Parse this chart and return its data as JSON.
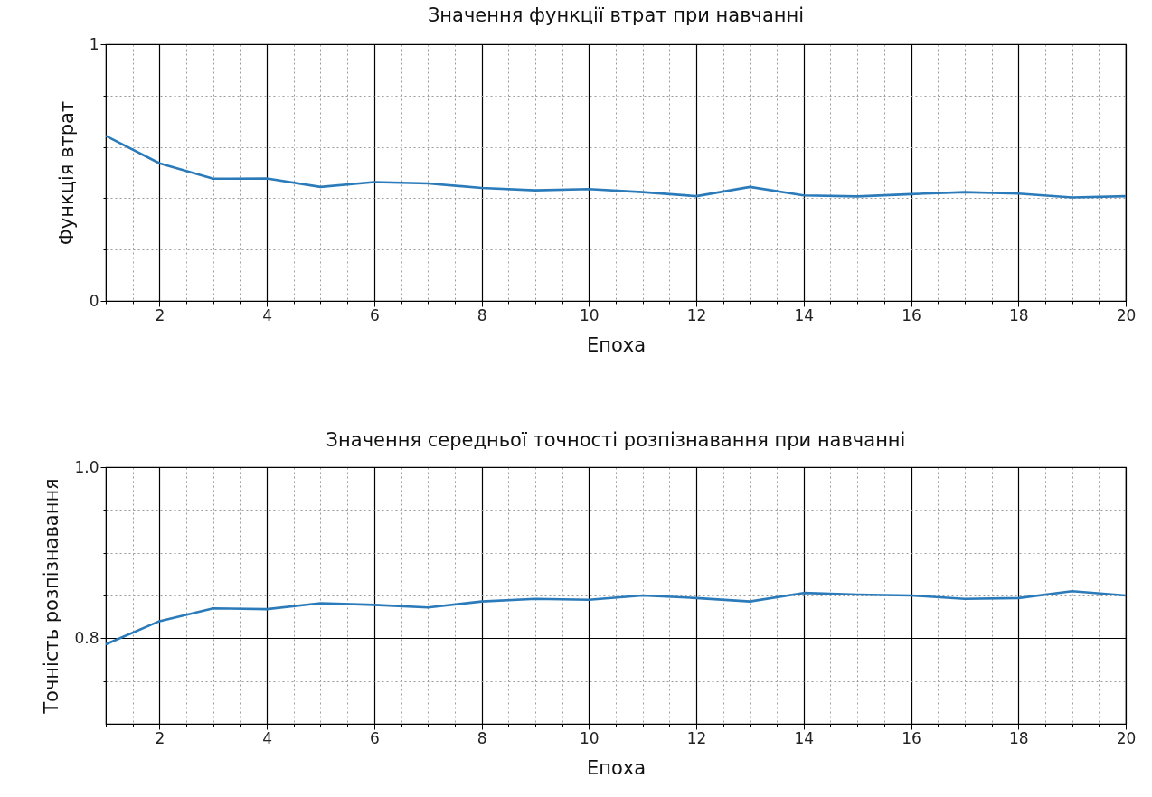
{
  "chart_data": [
    {
      "type": "line",
      "title": "Значення функції втрат при навчанні",
      "xlabel": "Епоха",
      "ylabel": "Функція втрат",
      "x": [
        1,
        2,
        3,
        4,
        5,
        6,
        7,
        8,
        9,
        10,
        11,
        12,
        13,
        14,
        15,
        16,
        17,
        18,
        19,
        20
      ],
      "series": [
        {
          "color": "#2b7bba",
          "values": [
            0.643,
            0.536,
            0.476,
            0.477,
            0.444,
            0.463,
            0.458,
            0.44,
            0.431,
            0.436,
            0.424,
            0.408,
            0.444,
            0.411,
            0.407,
            0.416,
            0.424,
            0.418,
            0.403,
            0.408
          ]
        }
      ],
      "xlim": [
        1,
        20
      ],
      "ylim": [
        0,
        1
      ],
      "xticks": [
        {
          "value": 1,
          "label": null
        },
        {
          "value": 1.5,
          "label": null
        },
        2,
        {
          "value": 2.5,
          "label": null
        },
        {
          "value": 3,
          "label": null
        },
        {
          "value": 3.5,
          "label": null
        },
        4,
        {
          "value": 4.5,
          "label": null
        },
        {
          "value": 5,
          "label": null
        },
        {
          "value": 5.5,
          "label": null
        },
        6,
        {
          "value": 6.5,
          "label": null
        },
        {
          "value": 7,
          "label": null
        },
        {
          "value": 7.5,
          "label": null
        },
        8,
        {
          "value": 8.5,
          "label": null
        },
        {
          "value": 9,
          "label": null
        },
        {
          "value": 9.5,
          "label": null
        },
        10,
        {
          "value": 10.5,
          "label": null
        },
        {
          "value": 11,
          "label": null
        },
        {
          "value": 11.5,
          "label": null
        },
        12,
        {
          "value": 12.5,
          "label": null
        },
        {
          "value": 13,
          "label": null
        },
        {
          "value": 13.5,
          "label": null
        },
        14,
        {
          "value": 14.5,
          "label": null
        },
        {
          "value": 15,
          "label": null
        },
        {
          "value": 15.5,
          "label": null
        },
        16,
        {
          "value": 16.5,
          "label": null
        },
        {
          "value": 17,
          "label": null
        },
        {
          "value": 17.5,
          "label": null
        },
        18,
        {
          "value": 18.5,
          "label": null
        },
        {
          "value": 19,
          "label": null
        },
        {
          "value": 19.5,
          "label": null
        },
        20
      ],
      "yticks": [
        0,
        {
          "value": 0.2,
          "label": null
        },
        {
          "value": 0.4,
          "label": null
        },
        {
          "value": 0.6,
          "label": null
        },
        {
          "value": 0.8,
          "label": null
        },
        1
      ],
      "grid": true
    },
    {
      "type": "line",
      "title": "Значення середньої точності розпізнавання при навчанні",
      "xlabel": "Епоха",
      "ylabel": "Точність розпізнавання",
      "x": [
        1,
        2,
        3,
        4,
        5,
        6,
        7,
        8,
        9,
        10,
        11,
        12,
        13,
        14,
        15,
        16,
        17,
        18,
        19,
        20
      ],
      "series": [
        {
          "color": "#2b7bba",
          "values": [
            0.793,
            0.82,
            0.835,
            0.834,
            0.841,
            0.839,
            0.836,
            0.843,
            0.846,
            0.845,
            0.85,
            0.847,
            0.843,
            0.853,
            0.851,
            0.85,
            0.846,
            0.847,
            0.855,
            0.85
          ]
        }
      ],
      "xlim": [
        1,
        20
      ],
      "ylim": [
        0.7,
        1
      ],
      "xticks": [
        {
          "value": 1,
          "label": null
        },
        {
          "value": 1.5,
          "label": null
        },
        2,
        {
          "value": 2.5,
          "label": null
        },
        {
          "value": 3,
          "label": null
        },
        {
          "value": 3.5,
          "label": null
        },
        4,
        {
          "value": 4.5,
          "label": null
        },
        {
          "value": 5,
          "label": null
        },
        {
          "value": 5.5,
          "label": null
        },
        6,
        {
          "value": 6.5,
          "label": null
        },
        {
          "value": 7,
          "label": null
        },
        {
          "value": 7.5,
          "label": null
        },
        8,
        {
          "value": 8.5,
          "label": null
        },
        {
          "value": 9,
          "label": null
        },
        {
          "value": 9.5,
          "label": null
        },
        10,
        {
          "value": 10.5,
          "label": null
        },
        {
          "value": 11,
          "label": null
        },
        {
          "value": 11.5,
          "label": null
        },
        12,
        {
          "value": 12.5,
          "label": null
        },
        {
          "value": 13,
          "label": null
        },
        {
          "value": 13.5,
          "label": null
        },
        14,
        {
          "value": 14.5,
          "label": null
        },
        {
          "value": 15,
          "label": null
        },
        {
          "value": 15.5,
          "label": null
        },
        16,
        {
          "value": 16.5,
          "label": null
        },
        {
          "value": 17,
          "label": null
        },
        {
          "value": 17.5,
          "label": null
        },
        18,
        {
          "value": 18.5,
          "label": null
        },
        {
          "value": 19,
          "label": null
        },
        {
          "value": 19.5,
          "label": null
        },
        20
      ],
      "yticks": [
        {
          "value": 0.75,
          "label": null
        },
        0.8,
        {
          "value": 0.85,
          "label": null
        },
        {
          "value": 0.9,
          "label": null
        },
        {
          "value": 0.95,
          "label": null
        },
        {
          "value": 1,
          "label": "1.0"
        }
      ],
      "grid": true
    }
  ]
}
